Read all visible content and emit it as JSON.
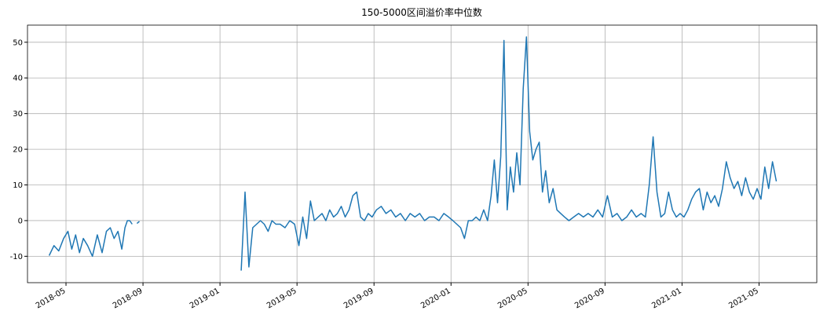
{
  "chart_data": {
    "type": "line",
    "title": "150-5000区间溢价率中位数",
    "x": [
      "2018-04",
      "2018-04",
      "2018-04",
      "2018-04",
      "2018-05",
      "2018-05",
      "2018-05",
      "2018-05",
      "2018-05",
      "2018-06",
      "2018-06",
      "2018-06",
      "2018-06",
      "2018-07",
      "2018-07",
      "2018-07",
      "2018-07",
      "2018-07",
      "2018-08",
      "2018-08",
      "2018-08",
      "2018-08",
      "2018-08",
      "2018-08",
      "2018-08",
      "2018-08",
      "2019-02",
      "2019-02",
      "2019-02",
      "2019-02",
      "2019-02",
      "2019-03",
      "2019-03",
      "2019-03",
      "2019-03",
      "2019-03",
      "2019-04",
      "2019-04",
      "2019-04",
      "2019-04",
      "2019-05",
      "2019-05",
      "2019-05",
      "2019-05",
      "2019-05",
      "2019-06",
      "2019-06",
      "2019-06",
      "2019-06",
      "2019-06",
      "2019-07",
      "2019-07",
      "2019-07",
      "2019-07",
      "2019-07",
      "2019-08",
      "2019-08",
      "2019-08",
      "2019-08",
      "2019-08",
      "2019-09",
      "2019-09",
      "2019-09",
      "2019-09",
      "2019-10",
      "2019-10",
      "2019-10",
      "2019-10",
      "2019-11",
      "2019-11",
      "2019-11",
      "2019-11",
      "2019-12",
      "2019-12",
      "2019-12",
      "2019-12",
      "2020-01",
      "2020-01",
      "2020-01",
      "2020-01",
      "2020-01",
      "2020-02",
      "2020-02",
      "2020-02",
      "2020-02",
      "2020-02",
      "2020-03",
      "2020-03",
      "2020-03",
      "2020-03",
      "2020-03",
      "2020-03",
      "2020-04",
      "2020-04",
      "2020-04",
      "2020-04",
      "2020-04",
      "2020-04",
      "2020-05",
      "2020-05",
      "2020-05",
      "2020-05",
      "2020-05",
      "2020-05",
      "2020-06",
      "2020-06",
      "2020-06",
      "2020-06",
      "2020-06",
      "2020-07",
      "2020-07",
      "2020-07",
      "2020-07",
      "2020-08",
      "2020-08",
      "2020-08",
      "2020-08",
      "2020-09",
      "2020-09",
      "2020-09",
      "2020-09",
      "2020-10",
      "2020-10",
      "2020-10",
      "2020-10",
      "2020-11",
      "2020-11",
      "2020-11",
      "2020-11",
      "2020-11",
      "2020-12",
      "2020-12",
      "2020-12",
      "2020-12",
      "2020-12",
      "2021-01",
      "2021-01",
      "2021-01",
      "2021-01",
      "2021-01",
      "2021-02",
      "2021-02",
      "2021-02",
      "2021-02",
      "2021-02",
      "2021-03",
      "2021-03",
      "2021-03",
      "2021-03",
      "2021-03",
      "2021-04",
      "2021-04",
      "2021-04",
      "2021-04",
      "2021-04",
      "2021-05",
      "2021-05",
      "2021-05",
      "2021-05",
      "2021-05"
    ],
    "series": [
      {
        "name": "150-5000区间溢价率中位数",
        "color": "#1f77b4",
        "values": [
          -9.8,
          -7,
          -8.5,
          -5,
          -3,
          -8,
          -4,
          -9,
          -5,
          -7,
          -10,
          -4,
          -9,
          -3,
          -2,
          -5,
          -3,
          -8,
          -2,
          0,
          0,
          -1,
          null,
          -0.8,
          -0.2,
          null,
          -14,
          8,
          -13,
          -2,
          -1,
          0,
          -1,
          -3,
          0,
          -1,
          -1,
          -2,
          0,
          -1,
          -7,
          1,
          -5,
          5.5,
          0,
          1,
          2,
          0,
          3,
          1,
          2,
          4,
          1,
          3,
          7,
          8,
          1,
          0,
          2,
          1,
          3,
          4,
          2,
          3,
          1,
          2,
          0,
          2,
          1,
          2,
          0,
          1,
          1,
          0,
          2,
          1,
          0,
          -1,
          -2,
          -5,
          0,
          0,
          1,
          0,
          3,
          0,
          7,
          17,
          5,
          18,
          50.5,
          3,
          15,
          8,
          19,
          10,
          37,
          51.5,
          25,
          17,
          20,
          22,
          8,
          14,
          5,
          9,
          3,
          2,
          1,
          0,
          1,
          2,
          1,
          2,
          1,
          3,
          1,
          7,
          1,
          2,
          0,
          1,
          3,
          1,
          2,
          1,
          10,
          23.5,
          8,
          1,
          2,
          8,
          3,
          1,
          2,
          1,
          3,
          6,
          8,
          9,
          3,
          8,
          5,
          7,
          4,
          9,
          16.5,
          12,
          9,
          11,
          7,
          12,
          8,
          6,
          9,
          6,
          15,
          9,
          16.5,
          11
        ]
      }
    ],
    "xlim": [
      "2018-03",
      "2021-08"
    ],
    "xticks": [
      "2018-05",
      "2018-09",
      "2019-01",
      "2019-05",
      "2019-09",
      "2020-01",
      "2020-05",
      "2020-09",
      "2021-01",
      "2021-05"
    ],
    "ylim": [
      -17.4,
      54.8
    ],
    "yticks": [
      -10,
      0,
      10,
      20,
      30,
      40,
      50
    ],
    "grid": true
  }
}
